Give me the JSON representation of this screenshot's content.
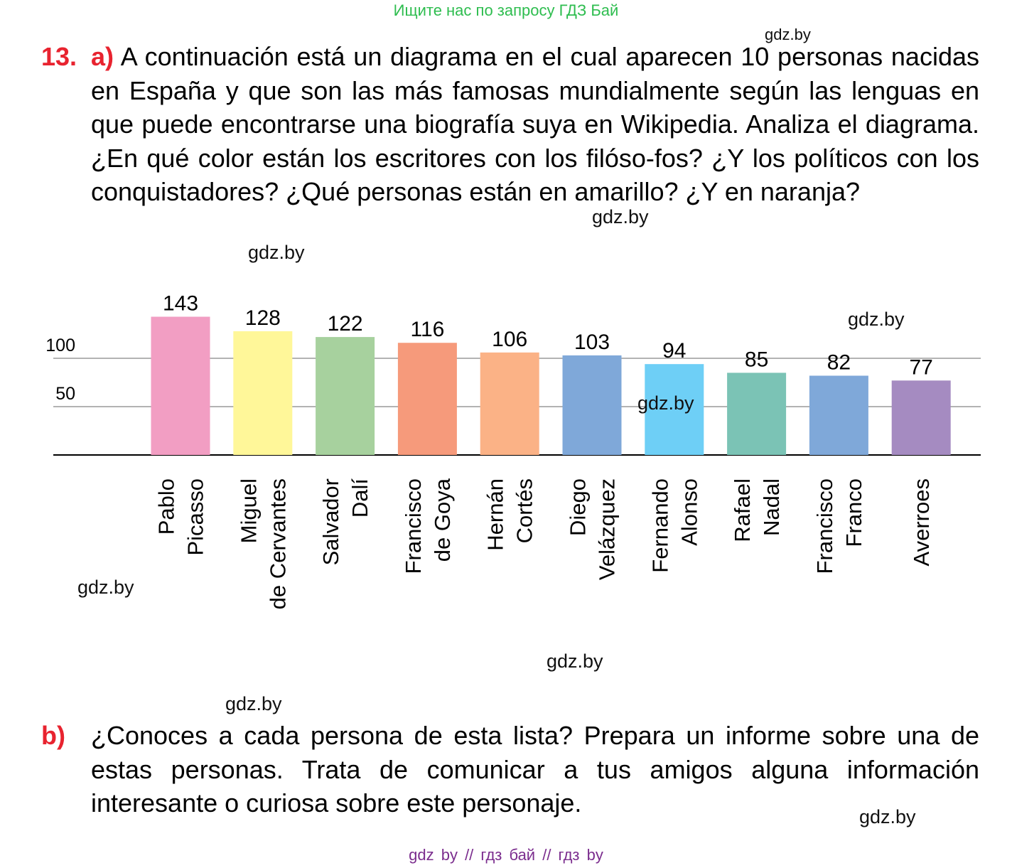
{
  "banner": "Ищите нас по запросу ГДЗ Бай",
  "watermark": "gdz.by",
  "task": {
    "number": "13.",
    "part_a_letter": "a)",
    "part_a_text": "A continuación está un diagrama en el cual aparecen 10 personas nacidas en España y que son las más famosas mundialmente según las lenguas en que puede encontrarse una biografía suya en Wikipedia. Analiza el diagrama. ¿En qué color están los escritores con los filóso-fos? ¿Y los políticos con los conquistadores? ¿Qué personas están en amarillo? ¿Y en naranja?",
    "part_b_letter": "b)",
    "part_b_text": "¿Conoces a cada persona de esta lista? Prepara un informe sobre una de estas personas. Trata de comunicar a tus amigos alguna información interesante o curiosa sobre este personaje."
  },
  "chart_data": {
    "type": "bar",
    "categories": [
      [
        "Pablo",
        "Picasso"
      ],
      [
        "Miguel",
        "de Cervantes"
      ],
      [
        "Salvador",
        "Dalí"
      ],
      [
        "Francisco",
        "de Goya"
      ],
      [
        "Hernán",
        "Cortés"
      ],
      [
        "Diego",
        "Velázquez"
      ],
      [
        "Fernando",
        "Alonso"
      ],
      [
        "Rafael",
        "Nadal"
      ],
      [
        "Francisco",
        "Franco"
      ],
      [
        "Averroes"
      ]
    ],
    "values": [
      143,
      128,
      122,
      116,
      106,
      103,
      94,
      85,
      82,
      77
    ],
    "colors": [
      "#f29ec3",
      "#fff799",
      "#a7d19e",
      "#f69a7b",
      "#fbb286",
      "#7fa8d9",
      "#6ecff6",
      "#7bc3b5",
      "#7fa8d9",
      "#a58bc1"
    ],
    "yticks": [
      50,
      100
    ],
    "ylim": [
      0,
      150
    ],
    "grid": true,
    "title": "",
    "xlabel": "",
    "ylabel": ""
  },
  "footer": "gdz by  //  гдз бай  //  гдз by"
}
